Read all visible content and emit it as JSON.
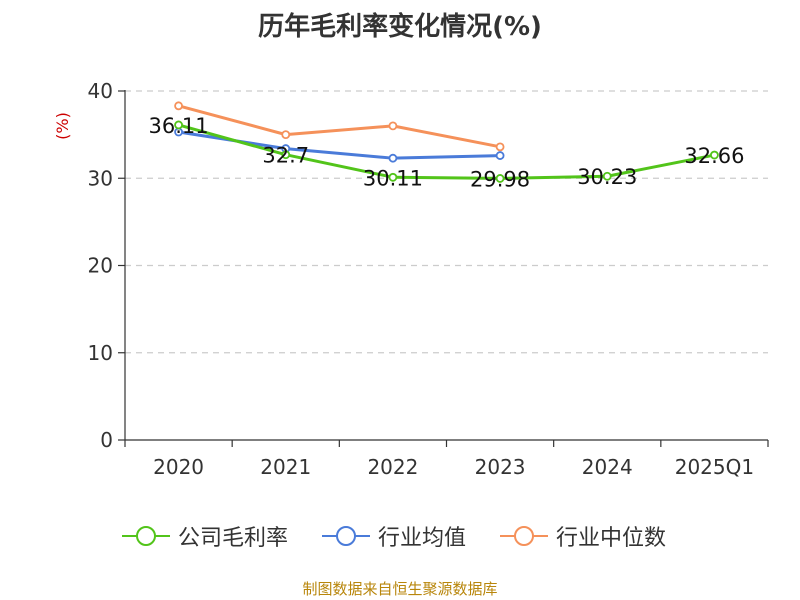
{
  "chart_data": {
    "type": "line",
    "title": "历年毛利率变化情况(%)",
    "ylabel": "(%)",
    "xlabel": "",
    "categories": [
      "2020",
      "2021",
      "2022",
      "2023",
      "2024",
      "2025Q1"
    ],
    "ylim": [
      0,
      40
    ],
    "yticks": [
      0,
      10,
      20,
      30,
      40
    ],
    "grid": true,
    "legend_position": "bottom",
    "series": [
      {
        "name": "公司毛利率",
        "color": "#52c41a",
        "values": [
          36.11,
          32.7,
          30.11,
          29.98,
          30.23,
          32.66
        ],
        "labels": [
          "36.11",
          "32.7",
          "30.11",
          "29.98",
          "30.23",
          "32.66"
        ]
      },
      {
        "name": "行业均值",
        "color": "#4a7bd9",
        "values": [
          35.3,
          33.4,
          32.3,
          32.6,
          null,
          null
        ]
      },
      {
        "name": "行业中位数",
        "color": "#f5915a",
        "values": [
          38.3,
          35.0,
          36.0,
          33.6,
          null,
          null
        ]
      }
    ]
  },
  "source": "制图数据来自恒生聚源数据库",
  "colors": {
    "ylabel": "#cc0000",
    "source": "#b8860b",
    "axis": "#333333",
    "grid": "#cccccc"
  }
}
